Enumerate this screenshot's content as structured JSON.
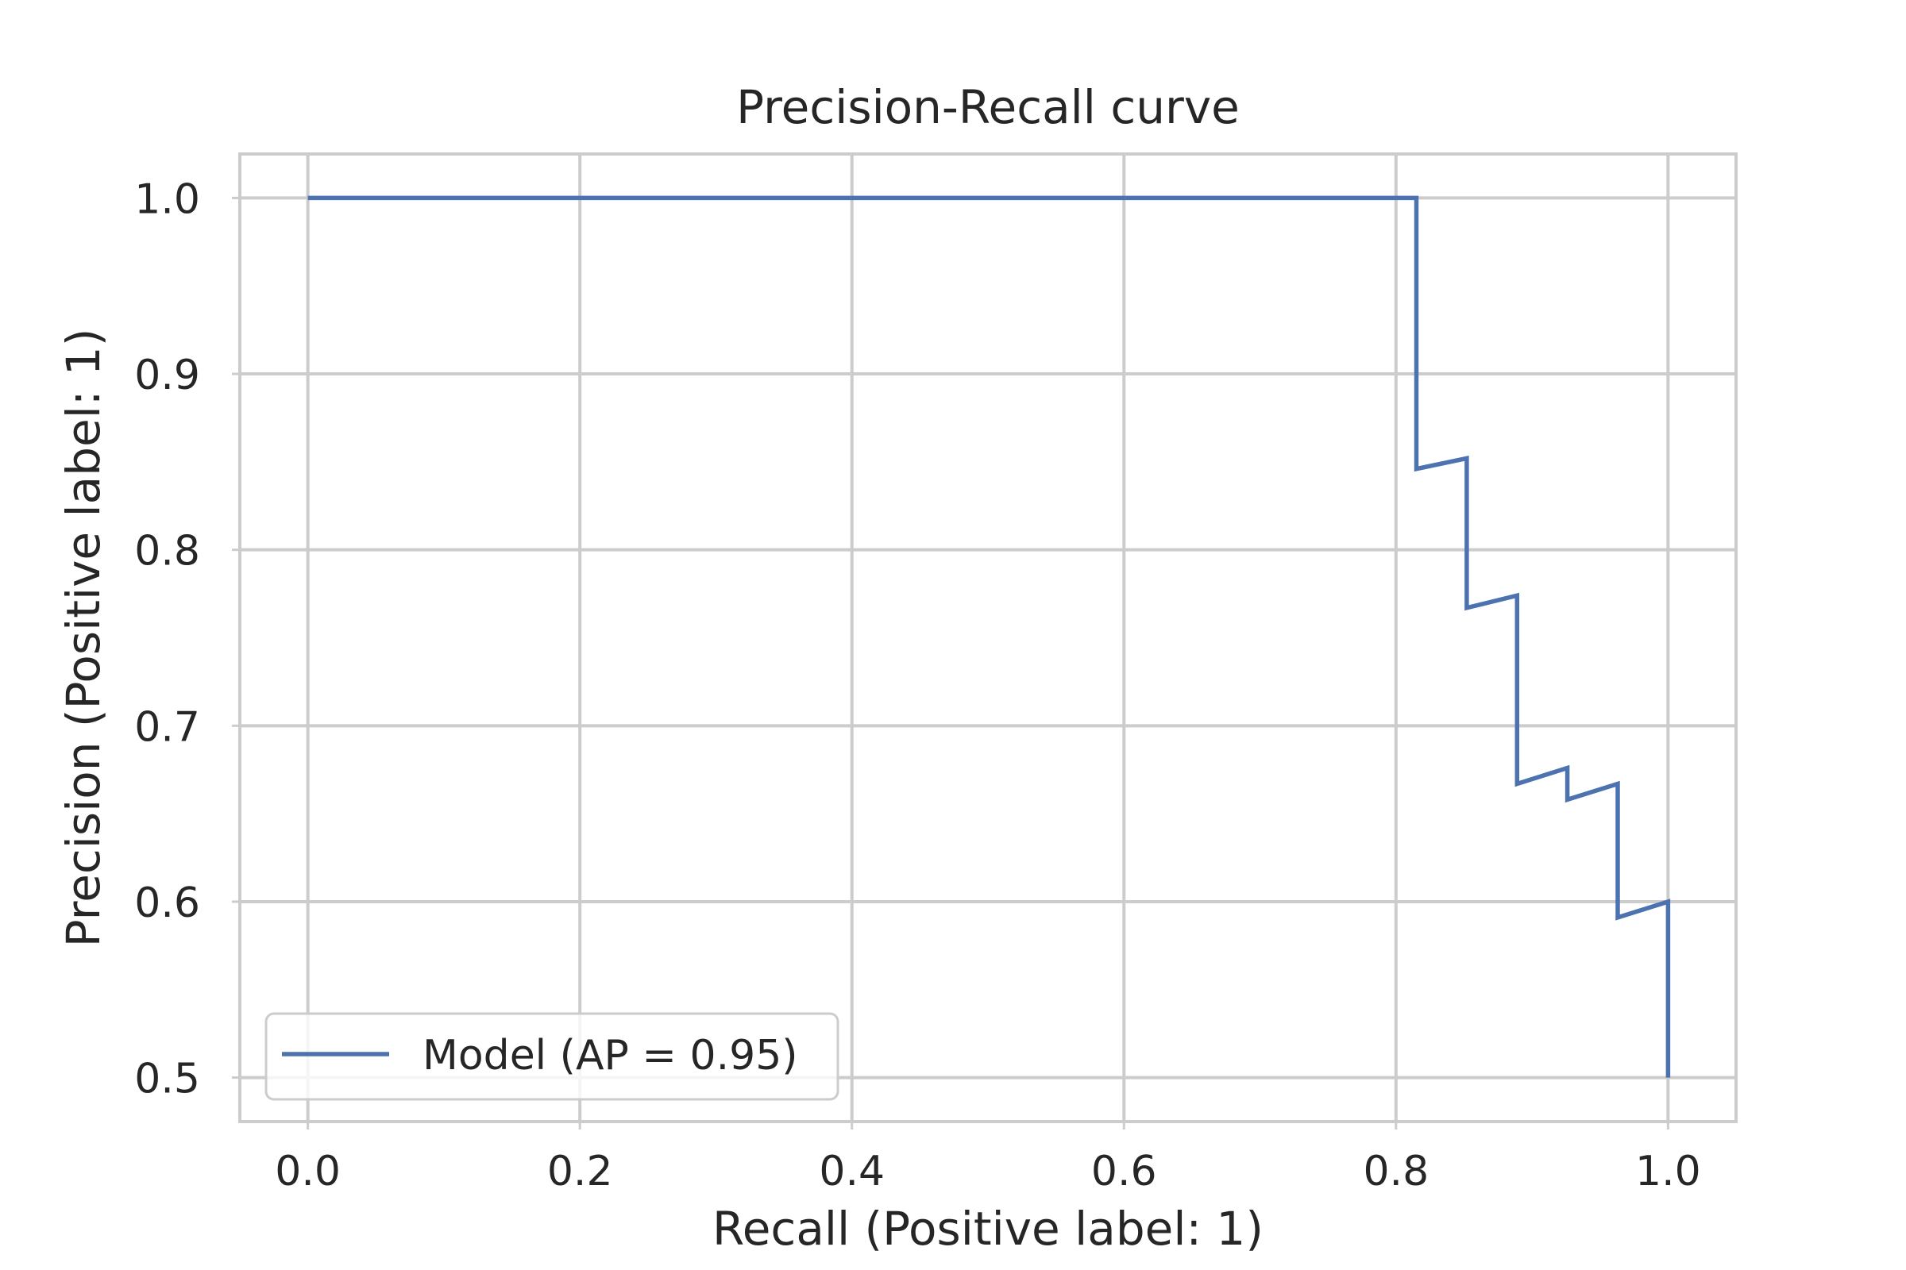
{
  "chart_data": {
    "type": "line",
    "title": "Precision-Recall curve",
    "xlabel": "Recall (Positive label: 1)",
    "ylabel": "Precision (Positive label: 1)",
    "xlim": [
      -0.05,
      1.05
    ],
    "ylim": [
      0.475,
      1.025
    ],
    "xticks": [
      0.0,
      0.2,
      0.4,
      0.6,
      0.8,
      1.0
    ],
    "xtick_labels": [
      "0.0",
      "0.2",
      "0.4",
      "0.6",
      "0.8",
      "1.0"
    ],
    "yticks": [
      0.5,
      0.6,
      0.7,
      0.8,
      0.9,
      1.0
    ],
    "ytick_labels": [
      "0.5",
      "0.6",
      "0.7",
      "0.8",
      "0.9",
      "1.0"
    ],
    "grid": true,
    "legend_position": "lower-left",
    "drawstyle": "steps-post",
    "series": [
      {
        "name": "Model (AP = 0.95)",
        "color": "#4c72b0",
        "x": [
          0.0,
          0.815,
          0.815,
          0.852,
          0.852,
          0.889,
          0.889,
          0.926,
          0.926,
          0.963,
          0.963,
          1.0,
          1.0
        ],
        "y": [
          1.0,
          1.0,
          0.846,
          0.852,
          0.767,
          0.774,
          0.667,
          0.676,
          0.658,
          0.667,
          0.591,
          0.6,
          0.5
        ]
      }
    ]
  }
}
